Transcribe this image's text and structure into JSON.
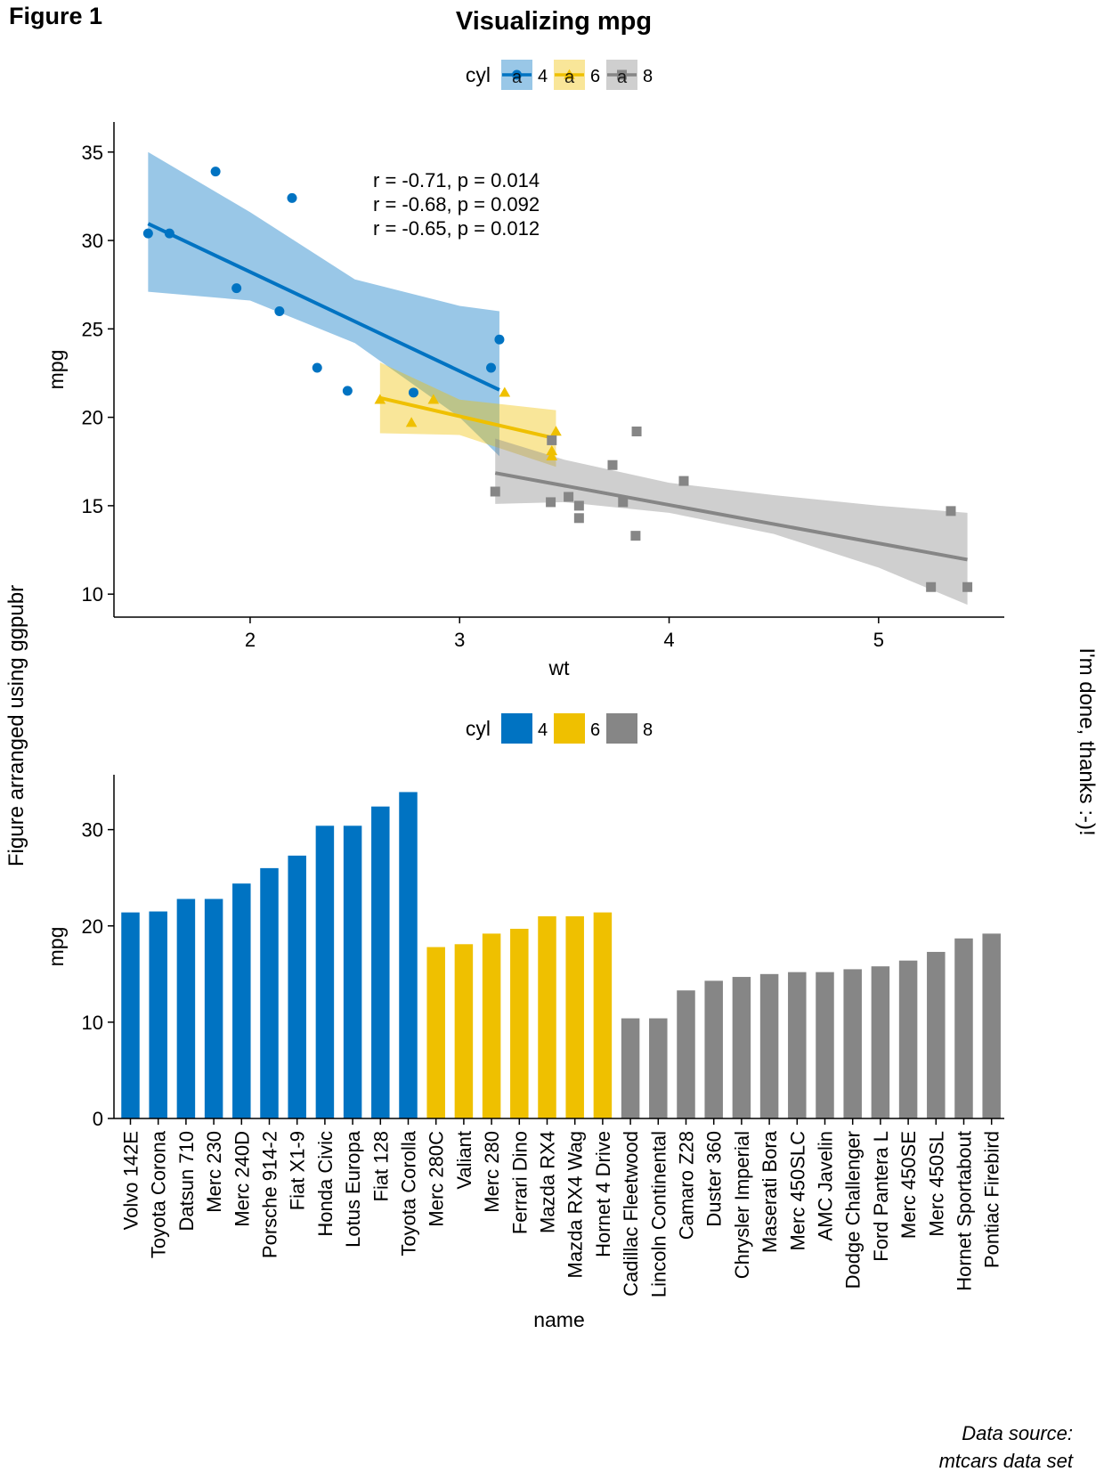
{
  "figure": {
    "tag": "Figure 1",
    "title": "Visualizing mpg",
    "left_caption": "Figure arranged using ggpubr",
    "right_caption": "I'm done, thanks :-)!",
    "source_line1": "Data source:",
    "source_line2": "mtcars data set"
  },
  "colors": {
    "4": "#0073C2",
    "6": "#EFC000",
    "8": "#868686",
    "title": "#FF0000",
    "left_caption": "#00FF00",
    "source": "#0000FF"
  },
  "chart_data": [
    {
      "type": "scatter",
      "title": "Visualizing mpg",
      "xlabel": "wt",
      "ylabel": "mpg",
      "xlim": [
        1.35,
        5.6
      ],
      "ylim": [
        8.7,
        36.7
      ],
      "xticks": [
        2,
        3,
        4,
        5
      ],
      "yticks": [
        10,
        15,
        20,
        25,
        30,
        35
      ],
      "grid": false,
      "legend": {
        "title": "cyl",
        "position": "top",
        "entries": [
          "4",
          "6",
          "8"
        ],
        "key_glyph": "a"
      },
      "series": [
        {
          "name": "4",
          "marker": "circle",
          "x": [
            2.32,
            3.19,
            3.15,
            2.2,
            1.615,
            1.835,
            2.465,
            1.935,
            2.14,
            1.513,
            2.78
          ],
          "y": [
            22.8,
            24.4,
            22.8,
            32.4,
            30.4,
            33.9,
            21.5,
            27.3,
            26.0,
            30.4,
            21.4
          ],
          "fit": {
            "x0": 1.513,
            "y0": 30.95,
            "x1": 3.19,
            "y1": 21.55
          },
          "band": {
            "x": [
              1.513,
              2.0,
              2.5,
              3.0,
              3.19
            ],
            "lower": [
              27.1,
              26.6,
              24.2,
              20.0,
              17.8
            ],
            "upper": [
              35.0,
              31.6,
              27.8,
              26.3,
              26.0
            ]
          }
        },
        {
          "name": "6",
          "marker": "triangle",
          "x": [
            2.62,
            2.875,
            3.215,
            3.44,
            3.46,
            3.44,
            2.77
          ],
          "y": [
            21.0,
            21.0,
            21.4,
            18.1,
            19.2,
            17.8,
            19.7
          ],
          "fit": {
            "x0": 2.62,
            "y0": 21.1,
            "x1": 3.46,
            "y1": 18.8
          },
          "band": {
            "x": [
              2.62,
              3.0,
              3.46
            ],
            "lower": [
              19.1,
              19.0,
              17.2
            ],
            "upper": [
              23.1,
              21.0,
              20.4
            ]
          }
        },
        {
          "name": "8",
          "marker": "square",
          "x": [
            3.44,
            3.57,
            4.07,
            3.73,
            3.78,
            5.25,
            5.424,
            5.345,
            3.52,
            3.435,
            3.84,
            3.845,
            3.17,
            3.57
          ],
          "y": [
            18.7,
            14.3,
            16.4,
            17.3,
            15.2,
            10.4,
            10.4,
            14.7,
            15.5,
            15.2,
            13.3,
            19.2,
            15.8,
            15.0
          ],
          "fit": {
            "x0": 3.17,
            "y0": 16.85,
            "x1": 5.424,
            "y1": 11.95
          },
          "band": {
            "x": [
              3.17,
              3.5,
              4.0,
              4.5,
              5.0,
              5.424
            ],
            "lower": [
              15.1,
              15.2,
              14.6,
              13.4,
              11.5,
              9.4
            ],
            "upper": [
              18.8,
              17.6,
              16.3,
              15.6,
              15.0,
              14.6
            ]
          }
        }
      ],
      "annotations": [
        {
          "group": "4",
          "text": "r = -0.71, p = 0.014"
        },
        {
          "group": "6",
          "text": "r = -0.68, p = 0.092"
        },
        {
          "group": "8",
          "text": "r = -0.65, p = 0.012"
        }
      ]
    },
    {
      "type": "bar",
      "xlabel": "name",
      "ylabel": "mpg",
      "ylim": [
        0,
        35.7
      ],
      "yticks": [
        0,
        10,
        20,
        30
      ],
      "grid": false,
      "legend": {
        "title": "cyl",
        "position": "top",
        "entries": [
          "4",
          "6",
          "8"
        ]
      },
      "categories": [
        "Volvo 142E",
        "Toyota Corona",
        "Datsun 710",
        "Merc 230",
        "Merc 240D",
        "Porsche 914-2",
        "Fiat X1-9",
        "Honda Civic",
        "Lotus Europa",
        "Fiat 128",
        "Toyota Corolla",
        "Merc 280C",
        "Valiant",
        "Merc 280",
        "Ferrari Dino",
        "Mazda RX4",
        "Mazda RX4 Wag",
        "Hornet 4 Drive",
        "Cadillac Fleetwood",
        "Lincoln Continental",
        "Camaro Z28",
        "Duster 360",
        "Chrysler Imperial",
        "Maserati Bora",
        "Merc 450SLC",
        "AMC Javelin",
        "Dodge Challenger",
        "Ford Pantera L",
        "Merc 450SE",
        "Merc 450SL",
        "Hornet Sportabout",
        "Pontiac Firebird"
      ],
      "values": [
        21.4,
        21.5,
        22.8,
        22.8,
        24.4,
        26.0,
        27.3,
        30.4,
        30.4,
        32.4,
        33.9,
        17.8,
        18.1,
        19.2,
        19.7,
        21.0,
        21.0,
        21.4,
        10.4,
        10.4,
        13.3,
        14.3,
        14.7,
        15.0,
        15.2,
        15.2,
        15.5,
        15.8,
        16.4,
        17.3,
        18.7,
        19.2
      ],
      "groups": [
        "4",
        "4",
        "4",
        "4",
        "4",
        "4",
        "4",
        "4",
        "4",
        "4",
        "4",
        "6",
        "6",
        "6",
        "6",
        "6",
        "6",
        "6",
        "8",
        "8",
        "8",
        "8",
        "8",
        "8",
        "8",
        "8",
        "8",
        "8",
        "8",
        "8",
        "8",
        "8"
      ]
    }
  ]
}
